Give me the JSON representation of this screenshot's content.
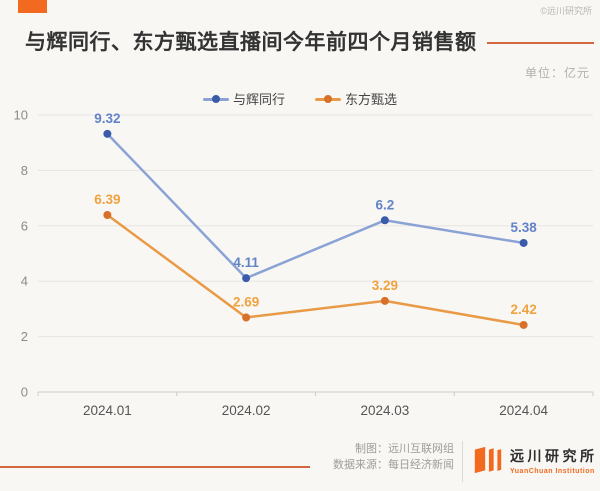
{
  "watermark": "©远川研究所",
  "header": {
    "title": "与辉同行、东方甄选直播间今年前四个月销售额",
    "unit_label": "单位：亿元"
  },
  "footer": {
    "credit_line1": "制图：远川互联网组",
    "credit_line2": "数据来源：每日经济新闻",
    "logo_cn": "远川研究所",
    "logo_en": "YuanChuan Institution"
  },
  "colors": {
    "background": "#f8f7f4",
    "accent_orange": "#f26a1f",
    "decor_line": "#d2673d",
    "gridline": "#e7e5e1",
    "axis_line": "#cfccc7",
    "axis_label": "#8b8b8b",
    "x_label": "#555555"
  },
  "chart_data": {
    "type": "line",
    "title": "与辉同行、东方甄选直播间今年前四个月销售额",
    "unit": "亿元",
    "categories": [
      "2024.01",
      "2024.02",
      "2024.03",
      "2024.04"
    ],
    "series": [
      {
        "name": "与辉同行",
        "values": [
          9.32,
          4.11,
          6.2,
          5.38
        ],
        "line_color": "#8ba3d4",
        "point_color": "#3a5ba9",
        "label_color": "#6283c7"
      },
      {
        "name": "东方甄选",
        "values": [
          6.39,
          2.69,
          3.29,
          2.42
        ],
        "line_color": "#e99a47",
        "point_color": "#d9702a",
        "label_color": "#f0a23f"
      }
    ],
    "y_ticks": [
      0,
      2,
      4,
      6,
      8,
      10
    ],
    "ylim": [
      0,
      10
    ],
    "grid": true,
    "legend_position": "top-center"
  }
}
